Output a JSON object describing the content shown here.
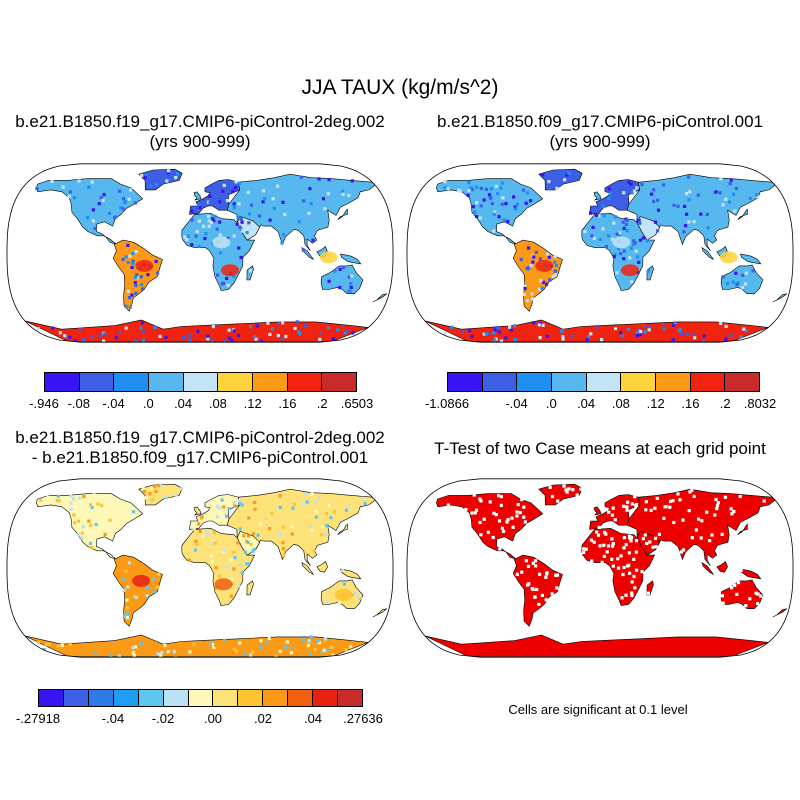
{
  "main_title": "JJA TAUX (kg/m/s^2)",
  "panels": {
    "top_left": {
      "title_line1": "b.e21.B1850.f19_g17.CMIP6-piControl-2deg.002",
      "title_line2": "(yrs 900-999)"
    },
    "top_right": {
      "title_line1": "b.e21.B1850.f09_g17.CMIP6-piControl.001",
      "title_line2": "(yrs 900-999)"
    },
    "bottom_left": {
      "title_line1": "b.e21.B1850.f19_g17.CMIP6-piControl-2deg.002",
      "title_line2": "- b.e21.B1850.f09_g17.CMIP6-piControl.001"
    },
    "bottom_right": {
      "title_line1": "T-Test of two Case means at each grid point",
      "note": "Cells are significant at 0.1 level",
      "significant_color": "#ee0000"
    }
  },
  "colorbars": {
    "top_left": {
      "colors": [
        "#3a14f0",
        "#3d5fe6",
        "#1f8ff2",
        "#56b8ee",
        "#c3e3f6",
        "#fdd23a",
        "#fb9a16",
        "#f02210",
        "#c92a2a"
      ],
      "labels": [
        "-.946",
        "-.08",
        "-.04",
        ".0",
        ".04",
        ".08",
        ".12",
        ".16",
        ".2",
        ".6503"
      ]
    },
    "top_right": {
      "colors": [
        "#3a14f0",
        "#3d5fe6",
        "#1f8ff2",
        "#56b8ee",
        "#c3e3f6",
        "#fdd23a",
        "#fb9a16",
        "#f02210",
        "#c92a2a"
      ],
      "labels": [
        "-1.0866",
        "",
        "-.04",
        ".0",
        ".04",
        ".08",
        ".12",
        ".16",
        ".2",
        ".8032"
      ]
    },
    "bottom_left": {
      "colors": [
        "#3a14f0",
        "#3d5fe6",
        "#2e7be8",
        "#1f9df2",
        "#5ec6f0",
        "#b9e2f4",
        "#fdf7b8",
        "#fde27a",
        "#fdc430",
        "#fb9a16",
        "#f25e10",
        "#e82010",
        "#c92a2a"
      ],
      "labels": [
        "-.27918",
        "",
        "",
        "-.04",
        "",
        "-.02",
        "",
        ".00",
        "",
        ".02",
        "",
        ".04",
        "",
        ".27636"
      ]
    }
  },
  "legend_colors": {
    "land_outline": "#000000",
    "frame": "#000000"
  }
}
